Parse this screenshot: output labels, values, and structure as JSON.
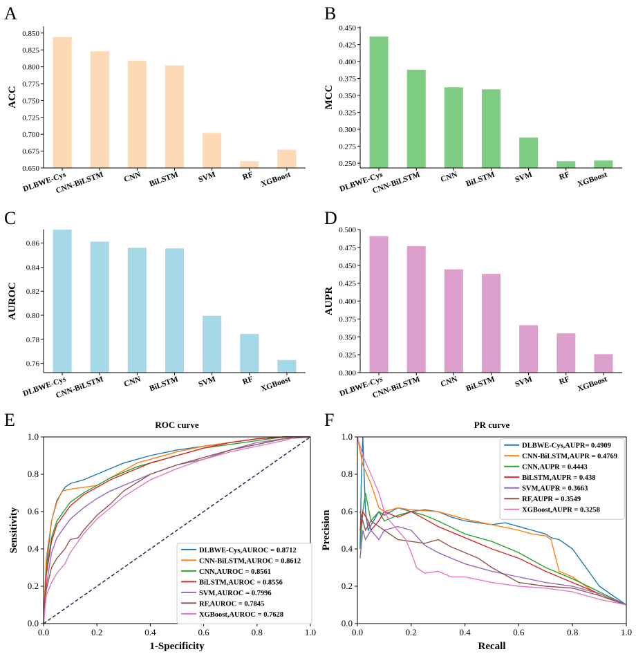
{
  "chart_data": [
    {
      "panel": "A",
      "type": "bar",
      "ylabel": "ACC",
      "color": "#fdd9b5",
      "categories": [
        "DLBWE-Cys",
        "CNN-BiLSTM",
        "CNN",
        "BiLSTM",
        "SVM",
        "RF",
        "XGBoost"
      ],
      "values": [
        0.844,
        0.823,
        0.809,
        0.802,
        0.702,
        0.66,
        0.677
      ],
      "ylim": [
        0.65,
        0.86
      ],
      "yticks": [
        0.65,
        0.675,
        0.7,
        0.725,
        0.75,
        0.775,
        0.8,
        0.825,
        0.85
      ],
      "ytick_labels": [
        "0.650",
        "0.675",
        "0.700",
        "0.725",
        "0.750",
        "0.775",
        "0.800",
        "0.825",
        "0.850"
      ]
    },
    {
      "panel": "B",
      "type": "bar",
      "ylabel": "MCC",
      "color": "#7fcd83",
      "categories": [
        "DLBWE-Cys",
        "CNN-BiLSTM",
        "CNN",
        "BiLSTM",
        "SVM",
        "RF",
        "XGBoost"
      ],
      "values": [
        0.437,
        0.388,
        0.362,
        0.359,
        0.288,
        0.253,
        0.254
      ],
      "ylim": [
        0.243,
        0.452
      ],
      "yticks": [
        0.25,
        0.275,
        0.3,
        0.325,
        0.35,
        0.375,
        0.4,
        0.425,
        0.45
      ],
      "ytick_labels": [
        "0.250",
        "0.275",
        "0.300",
        "0.325",
        "0.350",
        "0.375",
        "0.400",
        "0.425",
        "0.450"
      ]
    },
    {
      "panel": "C",
      "type": "bar",
      "ylabel": "AUROC",
      "color": "#a6d9e8",
      "categories": [
        "DLBWE-Cys",
        "CNN-BiLSTM",
        "CNN",
        "BiLSTM",
        "SVM",
        "RF",
        "XGBoost"
      ],
      "values": [
        0.8712,
        0.8612,
        0.8561,
        0.8556,
        0.7996,
        0.7845,
        0.7628
      ],
      "ylim": [
        0.7523,
        0.8713
      ],
      "yticks": [
        0.76,
        0.78,
        0.8,
        0.82,
        0.84,
        0.86
      ],
      "ytick_labels": [
        "0.76",
        "0.78",
        "0.80",
        "0.82",
        "0.84",
        "0.86"
      ]
    },
    {
      "panel": "D",
      "type": "bar",
      "ylabel": "AUPR",
      "color": "#dda0cd",
      "categories": [
        "DLBWE-Cys",
        "CNN-BiLSTM",
        "CNN",
        "BiLSTM",
        "SVM",
        "RF",
        "XGBoost"
      ],
      "values": [
        0.4909,
        0.4769,
        0.4443,
        0.438,
        0.3663,
        0.3549,
        0.3258
      ],
      "ylim": [
        0.3,
        0.5
      ],
      "yticks": [
        0.3,
        0.325,
        0.35,
        0.375,
        0.4,
        0.425,
        0.45,
        0.475,
        0.5
      ],
      "ytick_labels": [
        "0.300",
        "0.325",
        "0.350",
        "0.375",
        "0.400",
        "0.425",
        "0.450",
        "0.475",
        "0.500"
      ]
    },
    {
      "panel": "E",
      "type": "line",
      "title": "ROC curve",
      "xlabel": "1-Specificity",
      "ylabel": "Sensitivity",
      "xlim": [
        0,
        1
      ],
      "ylim": [
        0,
        1
      ],
      "ticks": [
        0.0,
        0.2,
        0.4,
        0.6,
        0.8,
        1.0
      ],
      "tick_labels": [
        "0.0",
        "0.2",
        "0.4",
        "0.6",
        "0.8",
        "1.0"
      ],
      "diagonal_color": "#1f2a5a",
      "series": [
        {
          "name": "DLBWE-Cys,AUROC = 0.8712",
          "color": "#1f77b4",
          "x": [
            0,
            0.01,
            0.03,
            0.05,
            0.08,
            0.1,
            0.15,
            0.2,
            0.25,
            0.3,
            0.35,
            0.4,
            0.5,
            0.6,
            0.7,
            0.8,
            0.9,
            1.0
          ],
          "y": [
            0,
            0.3,
            0.55,
            0.66,
            0.73,
            0.75,
            0.77,
            0.8,
            0.83,
            0.86,
            0.88,
            0.9,
            0.93,
            0.95,
            0.97,
            0.99,
            1.0,
            1.0
          ]
        },
        {
          "name": "CNN-BiLSTM,AUROC = 0.8612",
          "color": "#ff7f0e",
          "x": [
            0,
            0.01,
            0.03,
            0.05,
            0.07,
            0.1,
            0.15,
            0.2,
            0.25,
            0.3,
            0.35,
            0.4,
            0.5,
            0.6,
            0.7,
            0.8,
            0.9,
            1.0
          ],
          "y": [
            0,
            0.35,
            0.55,
            0.65,
            0.71,
            0.72,
            0.73,
            0.74,
            0.78,
            0.82,
            0.86,
            0.88,
            0.92,
            0.95,
            0.97,
            0.99,
            1.0,
            1.0
          ]
        },
        {
          "name": "CNN,AUROC = 0.8561",
          "color": "#2ca02c",
          "x": [
            0,
            0.01,
            0.03,
            0.05,
            0.1,
            0.15,
            0.2,
            0.25,
            0.3,
            0.35,
            0.4,
            0.5,
            0.6,
            0.7,
            0.8,
            0.9,
            1.0
          ],
          "y": [
            0,
            0.28,
            0.46,
            0.55,
            0.65,
            0.7,
            0.74,
            0.78,
            0.81,
            0.84,
            0.86,
            0.9,
            0.94,
            0.96,
            0.98,
            1.0,
            1.0
          ]
        },
        {
          "name": "BiLSTM,AUROC = 0.8556",
          "color": "#d62728",
          "x": [
            0,
            0.01,
            0.03,
            0.05,
            0.1,
            0.15,
            0.2,
            0.25,
            0.3,
            0.35,
            0.4,
            0.5,
            0.6,
            0.7,
            0.8,
            0.9,
            1.0
          ],
          "y": [
            0,
            0.26,
            0.44,
            0.53,
            0.63,
            0.69,
            0.73,
            0.77,
            0.8,
            0.83,
            0.86,
            0.9,
            0.94,
            0.97,
            0.99,
            1.0,
            1.0
          ]
        },
        {
          "name": "SVM,AUROC = 0.7996",
          "color": "#9467bd",
          "x": [
            0,
            0.01,
            0.03,
            0.05,
            0.1,
            0.15,
            0.2,
            0.25,
            0.3,
            0.35,
            0.4,
            0.5,
            0.6,
            0.7,
            0.8,
            0.9,
            1.0
          ],
          "y": [
            0,
            0.2,
            0.38,
            0.46,
            0.56,
            0.62,
            0.67,
            0.71,
            0.74,
            0.77,
            0.8,
            0.85,
            0.88,
            0.93,
            0.97,
            0.99,
            1.0
          ]
        },
        {
          "name": "RF,AUROC = 0.7845",
          "color": "#8c564b",
          "x": [
            0,
            0.01,
            0.03,
            0.05,
            0.08,
            0.1,
            0.13,
            0.15,
            0.2,
            0.25,
            0.3,
            0.4,
            0.5,
            0.6,
            0.7,
            0.8,
            0.9,
            1.0
          ],
          "y": [
            0,
            0.18,
            0.3,
            0.35,
            0.4,
            0.45,
            0.46,
            0.5,
            0.58,
            0.64,
            0.71,
            0.8,
            0.85,
            0.89,
            0.93,
            0.96,
            0.99,
            1.0
          ]
        },
        {
          "name": "XGBoost,AUROC = 0.7628",
          "color": "#e377c2",
          "x": [
            0,
            0.01,
            0.03,
            0.05,
            0.08,
            0.1,
            0.15,
            0.2,
            0.25,
            0.3,
            0.4,
            0.5,
            0.6,
            0.7,
            0.8,
            0.9,
            0.95,
            1.0
          ],
          "y": [
            0,
            0.15,
            0.22,
            0.27,
            0.32,
            0.38,
            0.48,
            0.56,
            0.62,
            0.68,
            0.77,
            0.83,
            0.88,
            0.92,
            0.95,
            0.98,
            1.0,
            1.0
          ]
        }
      ]
    },
    {
      "panel": "F",
      "type": "line",
      "title": "PR curve",
      "xlabel": "Recall",
      "ylabel": "Precision",
      "xlim": [
        0,
        1
      ],
      "ylim": [
        0,
        1
      ],
      "ticks": [
        0.0,
        0.2,
        0.4,
        0.6,
        0.8,
        1.0
      ],
      "tick_labels": [
        "0.0",
        "0.2",
        "0.4",
        "0.6",
        "0.8",
        "1.0"
      ],
      "series": [
        {
          "name": "DLBWE-Cys,AUPR= 0.4909",
          "color": "#1f77b4",
          "x": [
            0.01,
            0.015,
            0.02,
            0.03,
            0.04,
            0.06,
            0.08,
            0.1,
            0.15,
            0.2,
            0.25,
            0.3,
            0.35,
            0.4,
            0.5,
            0.55,
            0.6,
            0.65,
            0.7,
            0.72,
            0.75,
            0.8,
            0.85,
            0.9,
            0.95,
            1.0
          ],
          "y": [
            0.4,
            0.8,
            1.0,
            0.6,
            0.5,
            0.55,
            0.6,
            0.58,
            0.62,
            0.6,
            0.61,
            0.6,
            0.57,
            0.55,
            0.53,
            0.54,
            0.52,
            0.5,
            0.48,
            0.46,
            0.45,
            0.4,
            0.3,
            0.2,
            0.15,
            0.1
          ]
        },
        {
          "name": "CNN-BiLSTM,AUPR = 0.4769",
          "color": "#ff7f0e",
          "x": [
            0.0,
            0.02,
            0.05,
            0.08,
            0.1,
            0.15,
            0.2,
            0.3,
            0.4,
            0.5,
            0.6,
            0.65,
            0.7,
            0.72,
            0.75,
            0.8,
            0.85,
            0.9,
            1.0
          ],
          "y": [
            1.0,
            0.85,
            0.75,
            0.62,
            0.6,
            0.62,
            0.61,
            0.6,
            0.56,
            0.53,
            0.5,
            0.48,
            0.47,
            0.45,
            0.28,
            0.25,
            0.2,
            0.15,
            0.1
          ]
        },
        {
          "name": "CNN,AUPR = 0.4443",
          "color": "#2ca02c",
          "x": [
            0.01,
            0.02,
            0.03,
            0.05,
            0.08,
            0.1,
            0.15,
            0.2,
            0.25,
            0.3,
            0.4,
            0.5,
            0.6,
            0.7,
            0.8,
            0.9,
            1.0
          ],
          "y": [
            0.4,
            0.6,
            0.7,
            0.55,
            0.6,
            0.55,
            0.58,
            0.6,
            0.58,
            0.55,
            0.48,
            0.44,
            0.38,
            0.3,
            0.24,
            0.17,
            0.1
          ]
        },
        {
          "name": "BiLSTM,AUPR = 0.438",
          "color": "#d62728",
          "x": [
            0.01,
            0.02,
            0.04,
            0.05,
            0.08,
            0.1,
            0.15,
            0.2,
            0.25,
            0.3,
            0.4,
            0.5,
            0.6,
            0.7,
            0.8,
            0.9,
            1.0
          ],
          "y": [
            0.5,
            0.6,
            0.55,
            0.5,
            0.55,
            0.6,
            0.57,
            0.6,
            0.56,
            0.52,
            0.46,
            0.4,
            0.35,
            0.28,
            0.22,
            0.16,
            0.1
          ]
        },
        {
          "name": "SVM,AUPR = 0.3663",
          "color": "#9467bd",
          "x": [
            0.01,
            0.02,
            0.03,
            0.05,
            0.08,
            0.1,
            0.15,
            0.2,
            0.25,
            0.3,
            0.4,
            0.5,
            0.6,
            0.7,
            0.8,
            0.9,
            1.0
          ],
          "y": [
            0.35,
            0.5,
            0.45,
            0.5,
            0.45,
            0.5,
            0.52,
            0.5,
            0.42,
            0.38,
            0.32,
            0.28,
            0.25,
            0.22,
            0.2,
            0.16,
            0.1
          ]
        },
        {
          "name": "RF,AUPR = 0.3549",
          "color": "#8c564b",
          "x": [
            0.01,
            0.03,
            0.05,
            0.1,
            0.15,
            0.2,
            0.25,
            0.3,
            0.35,
            0.4,
            0.45,
            0.5,
            0.6,
            0.7,
            0.8,
            0.9,
            1.0
          ],
          "y": [
            0.6,
            0.5,
            0.55,
            0.5,
            0.45,
            0.44,
            0.43,
            0.45,
            0.41,
            0.38,
            0.35,
            0.3,
            0.22,
            0.2,
            0.19,
            0.15,
            0.1
          ]
        },
        {
          "name": "XGBoost,AUPR = 0.3258",
          "color": "#e377c2",
          "x": [
            0.0,
            0.02,
            0.05,
            0.08,
            0.1,
            0.12,
            0.15,
            0.18,
            0.2,
            0.22,
            0.25,
            0.3,
            0.35,
            0.4,
            0.5,
            0.6,
            0.7,
            0.8,
            0.9,
            1.0
          ],
          "y": [
            1.0,
            0.9,
            0.8,
            0.7,
            0.6,
            0.55,
            0.5,
            0.45,
            0.38,
            0.3,
            0.27,
            0.28,
            0.25,
            0.25,
            0.22,
            0.2,
            0.19,
            0.17,
            0.13,
            0.1
          ]
        }
      ]
    }
  ],
  "panel_letters": [
    "A",
    "B",
    "C",
    "D",
    "E",
    "F"
  ]
}
